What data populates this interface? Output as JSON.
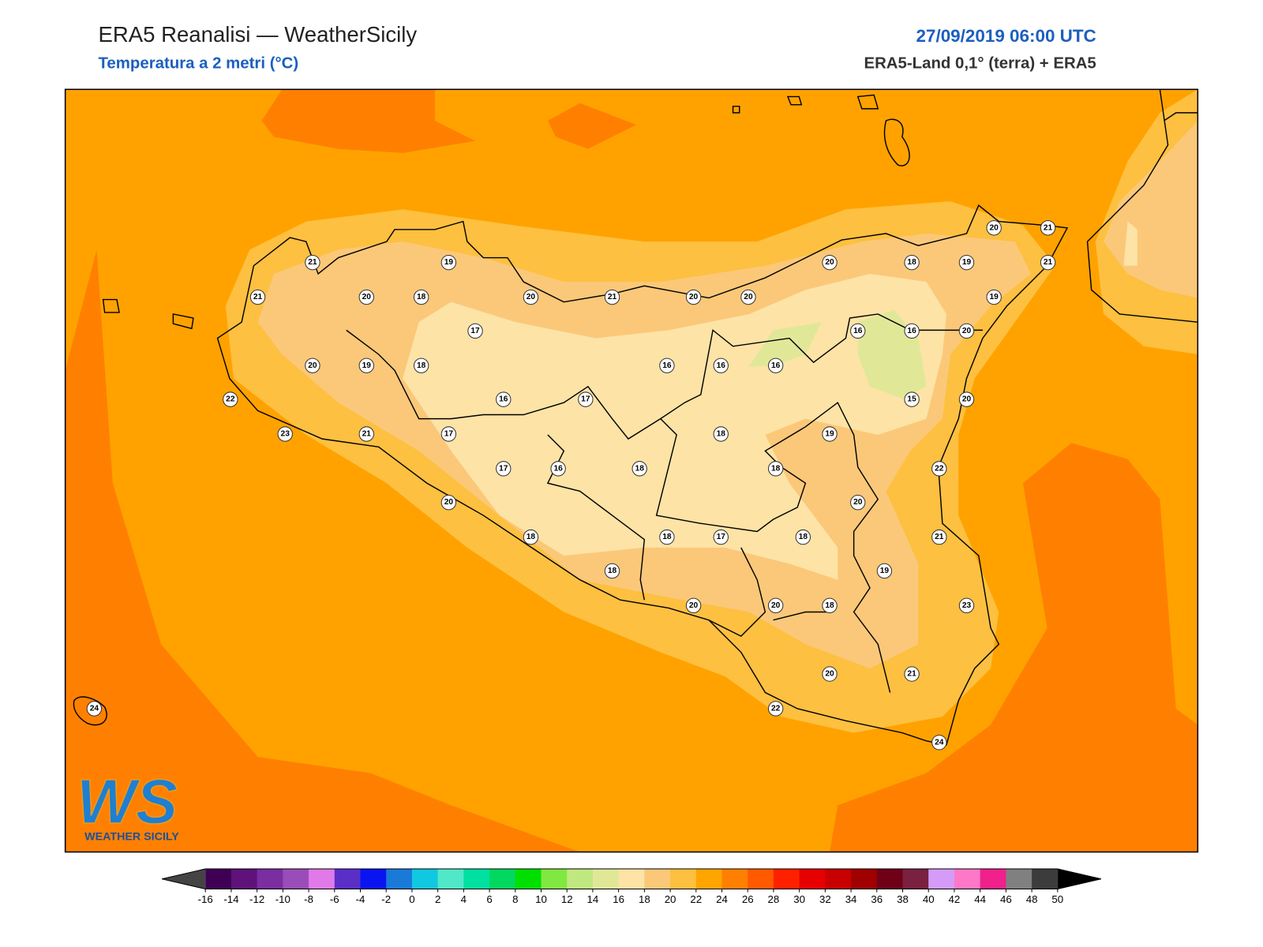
{
  "header": {
    "title": "ERA5 Reanalisi — WeatherSicily",
    "subtitle": "Temperatura a 2 metri (°C)",
    "datetime": "27/09/2019 06:00 UTC",
    "source": "ERA5-Land 0,1° (terra) + ERA5"
  },
  "stations": [
    21,
    19,
    21,
    20,
    18,
    20,
    21,
    20,
    20,
    20,
    18,
    19,
    20,
    21,
    21,
    19,
    17,
    20,
    19,
    18,
    16,
    16,
    16,
    16,
    16,
    20,
    22,
    16,
    17,
    15,
    20,
    23,
    21,
    17,
    18,
    19,
    17,
    16,
    18,
    18,
    22,
    20,
    20,
    18,
    18,
    17,
    18,
    21,
    18,
    19,
    20,
    20,
    18,
    23,
    20,
    21,
    22,
    24,
    24
  ],
  "colorbar": {
    "ticks": [
      -16,
      -14,
      -12,
      -10,
      -8,
      -6,
      -4,
      -2,
      0,
      2,
      4,
      6,
      8,
      10,
      12,
      14,
      16,
      18,
      20,
      22,
      24,
      26,
      28,
      30,
      32,
      34,
      36,
      38,
      40,
      42,
      44,
      46,
      48,
      50
    ],
    "colors": [
      "#3f0054",
      "#5e127a",
      "#7a2ea0",
      "#9a4db8",
      "#e07ae8",
      "#5a2fc8",
      "#0a14f0",
      "#1a7ad8",
      "#10c8e0",
      "#50e8c8",
      "#00e0a0",
      "#00d860",
      "#00e000",
      "#80e840",
      "#c0e880",
      "#e0e898",
      "#fde3a6",
      "#fbc879",
      "#fdc040",
      "#ffa500",
      "#ff8000",
      "#ff5a00",
      "#ff2000",
      "#e60000",
      "#c80000",
      "#a00000",
      "#700018",
      "#7a2040",
      "#d49cf8",
      "#ff78c8",
      "#f0208c",
      "#808080",
      "#3c3c3c"
    ],
    "under_color": "#444444",
    "over_color": "#000000"
  },
  "logo": {
    "initials": "WS",
    "name": "WEATHER SICILY"
  }
}
